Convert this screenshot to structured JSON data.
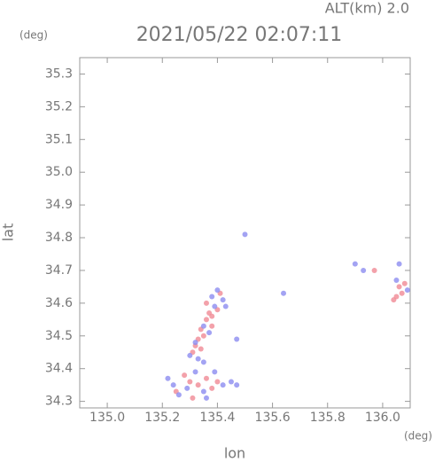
{
  "chart_data": {
    "type": "scatter",
    "title": "2021/05/22 02:07:11",
    "subtitle": "ALT(km) 2.0",
    "y_unit": "(deg)",
    "x_unit": "(deg)",
    "x_label": "lon",
    "y_label": "lat",
    "xlim": [
      134.9,
      136.1
    ],
    "ylim": [
      34.28,
      35.35
    ],
    "xticks": [
      {
        "value": 135.0,
        "label": "135.0"
      },
      135.2,
      135.4,
      135.6,
      135.8,
      {
        "value": 136.0,
        "label": "136.0"
      }
    ],
    "yticks": [
      34.3,
      34.4,
      34.5,
      34.6,
      34.7,
      34.8,
      34.9,
      {
        "value": 35.0,
        "label": "35.0"
      },
      35.1,
      35.2,
      35.3
    ],
    "series": [
      {
        "color": "#f08a95",
        "x": [
          135.36,
          135.37,
          135.38,
          135.36,
          135.34,
          135.33,
          135.32,
          135.34,
          135.38,
          135.4,
          135.31,
          135.35,
          135.28,
          135.3,
          135.33,
          135.36,
          135.38,
          135.25,
          135.31,
          135.4,
          136.06,
          136.07,
          136.05,
          136.08,
          136.04,
          135.97,
          135.41
        ],
        "y": [
          34.6,
          34.57,
          34.56,
          34.55,
          34.52,
          34.49,
          34.47,
          34.46,
          34.53,
          34.58,
          34.45,
          34.5,
          34.38,
          34.36,
          34.35,
          34.37,
          34.34,
          34.33,
          34.31,
          34.36,
          34.65,
          34.63,
          34.62,
          34.66,
          34.61,
          34.7,
          34.63
        ]
      },
      {
        "color": "#8c8cf0",
        "x": [
          135.38,
          135.4,
          135.42,
          135.43,
          135.39,
          135.35,
          135.32,
          135.3,
          135.33,
          135.35,
          135.37,
          135.22,
          135.24,
          135.26,
          135.29,
          135.32,
          135.35,
          135.39,
          135.42,
          135.45,
          135.47,
          135.36,
          136.05,
          136.09,
          136.06,
          135.9,
          135.93,
          135.64,
          135.5,
          135.47
        ],
        "y": [
          34.62,
          34.64,
          34.61,
          34.59,
          34.59,
          34.53,
          34.48,
          34.44,
          34.43,
          34.42,
          34.51,
          34.37,
          34.35,
          34.32,
          34.34,
          34.39,
          34.33,
          34.39,
          34.35,
          34.36,
          34.35,
          34.31,
          34.67,
          34.64,
          34.72,
          34.72,
          34.7,
          34.63,
          34.81,
          34.49
        ]
      }
    ]
  }
}
